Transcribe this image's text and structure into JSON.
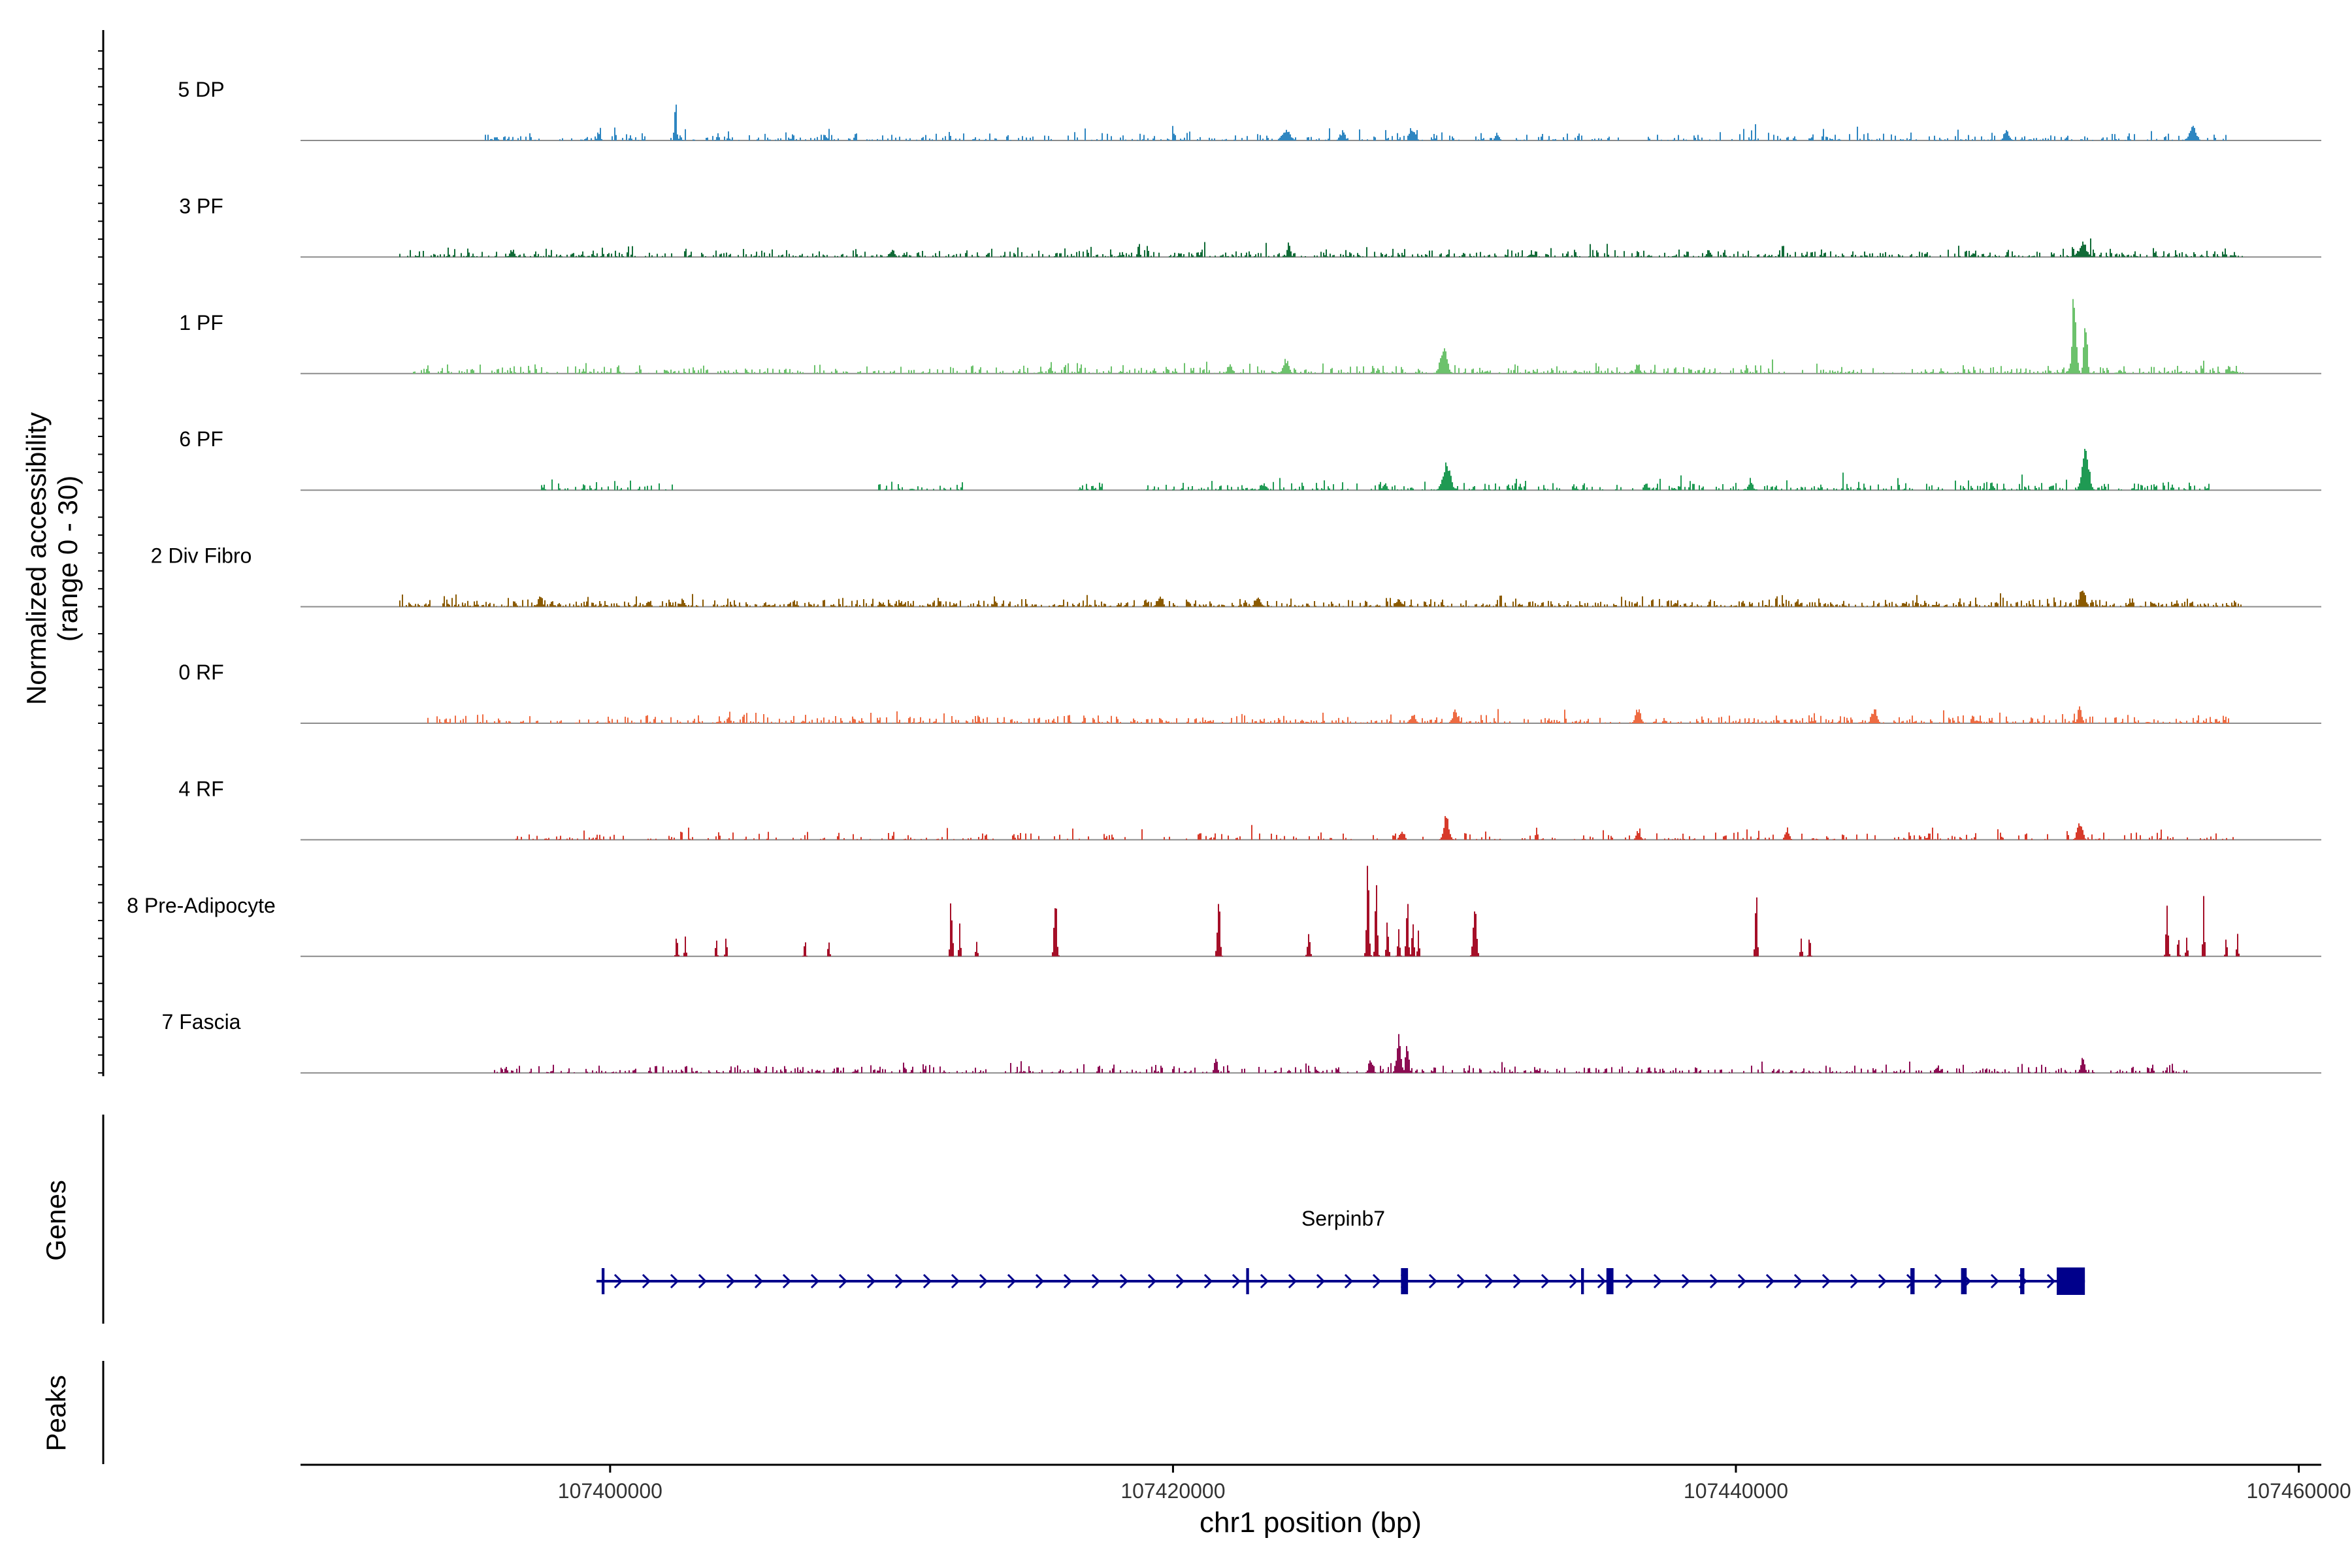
{
  "chart_data": {
    "type": "area",
    "title": "",
    "xlabel": "chr1 position (bp)",
    "ylabel": "Normalized accessibility",
    "ylabel_sub": "(range 0 - 30)",
    "ylim": [
      0,
      30
    ],
    "xlim": [
      107389000,
      107460800
    ],
    "x_ticks": [
      107400000,
      107420000,
      107440000,
      107460000
    ],
    "x_tick_labels": [
      "107400000",
      "107420000",
      "107440000",
      "107460000"
    ],
    "colors": {
      "baseline": "#8c8c8c",
      "axis": "#000000",
      "gene": "#00008b"
    },
    "tracks": [
      {
        "name": "5 DP",
        "color": "#2e86c1",
        "density": 0.42,
        "range": [
          107395500,
          107457500
        ],
        "peaks": [
          [
            107402300,
            11,
            80
          ],
          [
            107449600,
            3,
            200
          ],
          [
            107456200,
            4,
            250
          ],
          [
            107424000,
            3,
            300
          ],
          [
            107428500,
            3,
            200
          ],
          [
            107426000,
            2.5,
            200
          ],
          [
            107431500,
            2.2,
            150
          ]
        ],
        "quiet": []
      },
      {
        "name": "3 PF",
        "color": "#116b37",
        "density": 0.62,
        "range": [
          107392500,
          107458000
        ],
        "peaks": [
          [
            107424100,
            4,
            120
          ],
          [
            107452300,
            4,
            300
          ],
          [
            107410000,
            2,
            200
          ],
          [
            107396500,
            2.2,
            150
          ],
          [
            107439000,
            2,
            150
          ]
        ],
        "quiet": []
      },
      {
        "name": "1 PF",
        "color": "#6cc26c",
        "density": 0.55,
        "range": [
          107393000,
          107458000
        ],
        "peaks": [
          [
            107452000,
            22,
            160
          ],
          [
            107452400,
            17,
            120
          ],
          [
            107429600,
            9,
            250
          ],
          [
            107424000,
            4,
            200
          ],
          [
            107422000,
            2.5,
            200
          ],
          [
            107436500,
            3,
            150
          ]
        ],
        "quiet": []
      },
      {
        "name": "6 PF",
        "color": "#1f9a53",
        "density": 0.5,
        "range": [
          107397500,
          107456800
        ],
        "peaks": [
          [
            107452400,
            14,
            250
          ],
          [
            107429700,
            8,
            280
          ],
          [
            107440500,
            3,
            150
          ],
          [
            107423200,
            2,
            200
          ],
          [
            107427500,
            2.2,
            150
          ]
        ],
        "quiet": [
          [
            107402500,
            107409500
          ],
          [
            107412500,
            107416500
          ],
          [
            107417500,
            107419000
          ]
        ]
      },
      {
        "name": "2 Div Fibro",
        "color": "#8b5a00",
        "density": 0.68,
        "range": [
          107392500,
          107458000
        ],
        "peaks": [
          [
            107452300,
            6,
            200
          ],
          [
            107397500,
            3.5,
            150
          ],
          [
            107419500,
            3,
            200
          ],
          [
            107423000,
            3,
            200
          ],
          [
            107428000,
            2.5,
            200
          ]
        ],
        "quiet": []
      },
      {
        "name": "0 RF",
        "color": "#ee6b42",
        "density": 0.5,
        "range": [
          107393500,
          107457500
        ],
        "peaks": [
          [
            107452200,
            5.5,
            150
          ],
          [
            107436500,
            4.5,
            200
          ],
          [
            107444900,
            4,
            200
          ],
          [
            107430000,
            3.5,
            200
          ],
          [
            107428500,
            2.5,
            200
          ]
        ],
        "quiet": []
      },
      {
        "name": "4 RF",
        "color": "#d73a2a",
        "density": 0.3,
        "range": [
          107396500,
          107458000
        ],
        "peaks": [
          [
            107429700,
            7,
            200
          ],
          [
            107452200,
            5,
            200
          ],
          [
            107441800,
            3.5,
            150
          ],
          [
            107428100,
            3,
            150
          ],
          [
            107436500,
            2.5,
            150
          ]
        ],
        "quiet": []
      },
      {
        "name": "8 Pre-Adipocyte",
        "color": "#a50f28",
        "density": 0,
        "range": [
          107402000,
          107458000
        ],
        "peaks": [
          [
            107402350,
            6,
            70
          ],
          [
            107402650,
            5,
            60
          ],
          [
            107403750,
            5,
            60
          ],
          [
            107404100,
            6,
            60
          ],
          [
            107406900,
            6,
            60
          ],
          [
            107407750,
            6,
            60
          ],
          [
            107412100,
            18,
            80
          ],
          [
            107412400,
            9,
            60
          ],
          [
            107413000,
            6,
            60
          ],
          [
            107415800,
            16,
            100
          ],
          [
            107421600,
            17,
            100
          ],
          [
            107424800,
            6,
            100
          ],
          [
            107426900,
            29,
            90
          ],
          [
            107427200,
            21,
            80
          ],
          [
            107427600,
            11,
            80
          ],
          [
            107428000,
            8,
            80
          ],
          [
            107428300,
            16,
            80
          ],
          [
            107428500,
            9,
            80
          ],
          [
            107428700,
            8,
            60
          ],
          [
            107430700,
            17,
            120
          ],
          [
            107440700,
            17,
            80
          ],
          [
            107442300,
            6,
            60
          ],
          [
            107442600,
            6,
            60
          ],
          [
            107455300,
            17,
            80
          ],
          [
            107455700,
            6,
            60
          ],
          [
            107456000,
            6,
            60
          ],
          [
            107456600,
            15,
            60
          ],
          [
            107457400,
            6,
            60
          ],
          [
            107457800,
            6,
            60
          ]
        ],
        "quiet": []
      },
      {
        "name": "7 Fascia",
        "color": "#8c0b52",
        "density": 0.42,
        "range": [
          107395500,
          107456000
        ],
        "peaks": [
          [
            107428000,
            12,
            160
          ],
          [
            107428300,
            9,
            120
          ],
          [
            107427000,
            4,
            150
          ],
          [
            107421500,
            4,
            120
          ],
          [
            107452300,
            4,
            150
          ]
        ],
        "quiet": []
      }
    ],
    "gene": {
      "name": "Serpinb7",
      "start": 107399700,
      "end": 107452400,
      "strand": "+",
      "exons": [
        [
          107399700,
          107399800
        ],
        [
          107422600,
          107422700
        ],
        [
          107428100,
          107428350
        ],
        [
          107434500,
          107434600
        ],
        [
          107435400,
          107435650
        ],
        [
          107446200,
          107446350
        ],
        [
          107448000,
          107448200
        ],
        [
          107450100,
          107450250
        ],
        [
          107451400,
          107452400
        ]
      ]
    },
    "panels": {
      "genes_label": "Genes",
      "peaks_label": "Peaks"
    }
  }
}
